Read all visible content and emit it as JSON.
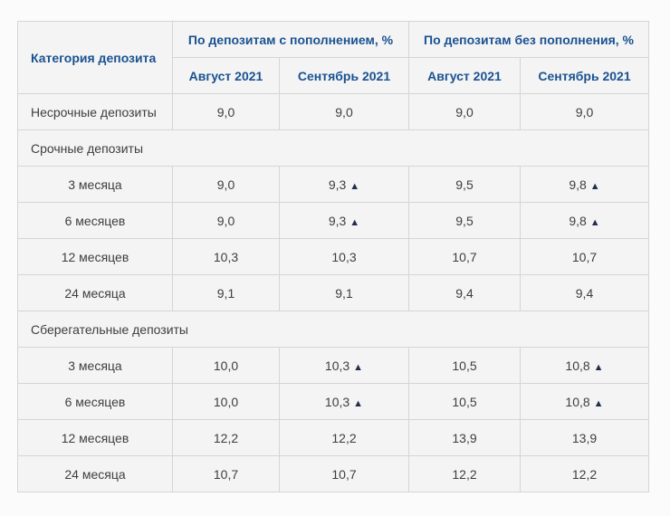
{
  "page": {
    "background": "#fbfbfb"
  },
  "colors": {
    "header_text": "#1a5291",
    "body_text": "#3e3e3e",
    "cell_bg": "#f4f4f4",
    "border": "#d5d5d5",
    "marker": "#232e4e"
  },
  "icons": {
    "up_marker": "▲"
  },
  "table": {
    "category_header": "Категория депозита",
    "group_headers": [
      "По депозитам с пополнением, %",
      "По депозитам без пополнения, %"
    ],
    "sub_headers": [
      "Август 2021",
      "Сентябрь 2021",
      "Август 2021",
      "Сентябрь 2021"
    ],
    "rows": [
      {
        "type": "data",
        "align": "left",
        "label": "Несрочные депозиты",
        "values": [
          {
            "v": "9,0"
          },
          {
            "v": "9,0"
          },
          {
            "v": "9,0"
          },
          {
            "v": "9,0"
          }
        ]
      },
      {
        "type": "section",
        "label": "Срочные депозиты"
      },
      {
        "type": "data",
        "align": "center",
        "label": "3 месяца",
        "values": [
          {
            "v": "9,0"
          },
          {
            "v": "9,3",
            "up": true
          },
          {
            "v": "9,5"
          },
          {
            "v": "9,8",
            "up": true
          }
        ]
      },
      {
        "type": "data",
        "align": "center",
        "label": "6 месяцев",
        "values": [
          {
            "v": "9,0"
          },
          {
            "v": "9,3",
            "up": true
          },
          {
            "v": "9,5"
          },
          {
            "v": "9,8",
            "up": true
          }
        ]
      },
      {
        "type": "data",
        "align": "center",
        "label": "12 месяцев",
        "values": [
          {
            "v": "10,3"
          },
          {
            "v": "10,3"
          },
          {
            "v": "10,7"
          },
          {
            "v": "10,7"
          }
        ]
      },
      {
        "type": "data",
        "align": "center",
        "label": "24 месяца",
        "values": [
          {
            "v": "9,1"
          },
          {
            "v": "9,1"
          },
          {
            "v": "9,4"
          },
          {
            "v": "9,4"
          }
        ]
      },
      {
        "type": "section",
        "label": "Сберегательные депозиты"
      },
      {
        "type": "data",
        "align": "center",
        "label": "3 месяца",
        "values": [
          {
            "v": "10,0"
          },
          {
            "v": "10,3",
            "up": true
          },
          {
            "v": "10,5"
          },
          {
            "v": "10,8",
            "up": true
          }
        ]
      },
      {
        "type": "data",
        "align": "center",
        "label": "6 месяцев",
        "values": [
          {
            "v": "10,0"
          },
          {
            "v": "10,3",
            "up": true
          },
          {
            "v": "10,5"
          },
          {
            "v": "10,8",
            "up": true
          }
        ]
      },
      {
        "type": "data",
        "align": "center",
        "label": "12 месяцев",
        "values": [
          {
            "v": "12,2"
          },
          {
            "v": "12,2"
          },
          {
            "v": "13,9"
          },
          {
            "v": "13,9"
          }
        ]
      },
      {
        "type": "data",
        "align": "center",
        "label": "24 месяца",
        "values": [
          {
            "v": "10,7"
          },
          {
            "v": "10,7"
          },
          {
            "v": "12,2"
          },
          {
            "v": "12,2"
          }
        ]
      }
    ]
  }
}
